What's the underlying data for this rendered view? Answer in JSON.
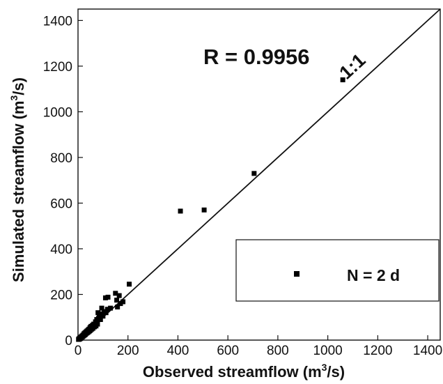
{
  "chart_data": {
    "type": "scatter",
    "xlabel": "Observed streamflow",
    "xlabel_unit": "(m³/s)",
    "ylabel": "Simulated streamflow",
    "ylabel_unit": "(m³/s)",
    "xlim": [
      0,
      1450
    ],
    "ylim": [
      0,
      1450
    ],
    "xticks": [
      0,
      200,
      400,
      600,
      800,
      1000,
      1200,
      1400
    ],
    "yticks": [
      0,
      200,
      400,
      600,
      800,
      1000,
      1200,
      1400
    ],
    "grid": false,
    "reference_line": {
      "label": "1:1",
      "slope": 1,
      "intercept": 0
    },
    "annotation": "R = 0.9956",
    "legend": {
      "placement": "lower-right",
      "text": "N = 2 d",
      "marker": "square"
    },
    "series": [
      {
        "marker": "square",
        "color": "#000000",
        "points": [
          [
            2,
            3
          ],
          [
            4,
            6
          ],
          [
            6,
            4
          ],
          [
            8,
            10
          ],
          [
            10,
            7
          ],
          [
            12,
            14
          ],
          [
            14,
            10
          ],
          [
            16,
            18
          ],
          [
            18,
            15
          ],
          [
            20,
            22
          ],
          [
            22,
            18
          ],
          [
            24,
            28
          ],
          [
            26,
            22
          ],
          [
            28,
            32
          ],
          [
            30,
            25
          ],
          [
            32,
            36
          ],
          [
            34,
            30
          ],
          [
            36,
            40
          ],
          [
            38,
            33
          ],
          [
            40,
            44
          ],
          [
            42,
            36
          ],
          [
            44,
            48
          ],
          [
            46,
            40
          ],
          [
            48,
            55
          ],
          [
            50,
            43
          ],
          [
            52,
            60
          ],
          [
            55,
            48
          ],
          [
            58,
            65
          ],
          [
            60,
            52
          ],
          [
            63,
            70
          ],
          [
            66,
            58
          ],
          [
            70,
            80
          ],
          [
            72,
            62
          ],
          [
            75,
            90
          ],
          [
            78,
            70
          ],
          [
            80,
            120
          ],
          [
            82,
            95
          ],
          [
            85,
            100
          ],
          [
            88,
            110
          ],
          [
            90,
            90
          ],
          [
            95,
            140
          ],
          [
            98,
            115
          ],
          [
            100,
            105
          ],
          [
            105,
            125
          ],
          [
            110,
            185
          ],
          [
            112,
            120
          ],
          [
            118,
            135
          ],
          [
            120,
            188
          ],
          [
            130,
            140
          ],
          [
            150,
            205
          ],
          [
            155,
            175
          ],
          [
            158,
            145
          ],
          [
            165,
            195
          ],
          [
            170,
            160
          ],
          [
            180,
            168
          ],
          [
            205,
            245
          ],
          [
            410,
            565
          ],
          [
            505,
            570
          ],
          [
            705,
            730
          ],
          [
            1060,
            1140
          ]
        ]
      }
    ]
  }
}
